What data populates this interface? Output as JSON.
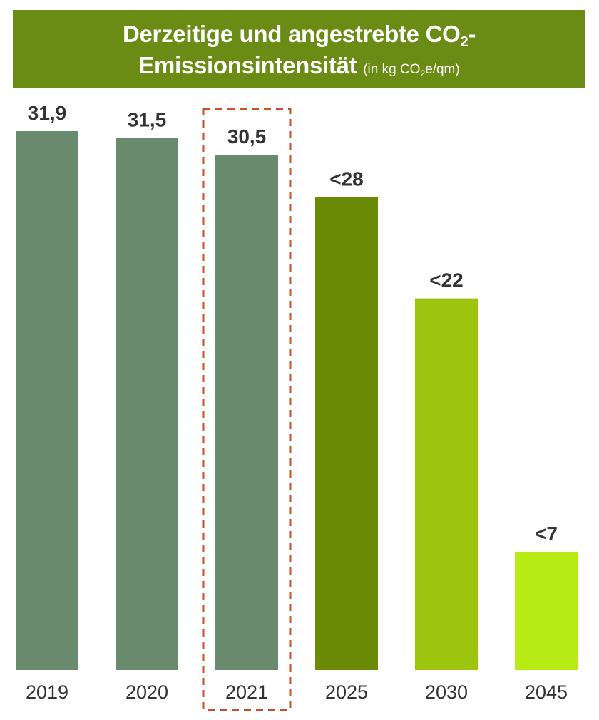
{
  "title": {
    "line1_text": "Derzeitige und angestrebte CO",
    "line1_sub": "2",
    "line1_suffix": "-",
    "line2_text": "Emissionsintensität",
    "unit_text": "(in kg CO",
    "unit_sub": "2",
    "unit_suffix": "e/qm)"
  },
  "colors": {
    "banner": "#6b8c14",
    "historical": "#6a8a6e",
    "target_2025": "#6b8a06",
    "target_2030": "#9dc40e",
    "target_2045": "#b8ea16",
    "highlight_border": "#c5502a",
    "label_text": "#333333"
  },
  "chart_data": {
    "type": "bar",
    "title": "Derzeitige und angestrebte CO2-Emissionsintensität (in kg CO2e/qm)",
    "xlabel": "",
    "ylabel": "",
    "categories": [
      "2019",
      "2020",
      "2021",
      "2025",
      "2030",
      "2045"
    ],
    "values": [
      31.9,
      31.5,
      30.5,
      28,
      22,
      7
    ],
    "value_labels": [
      "31,9",
      "31,5",
      "30,5",
      "<28",
      "<22",
      "<7"
    ],
    "bar_colors": [
      "#6a8a6e",
      "#6a8a6e",
      "#6a8a6e",
      "#6b8a06",
      "#9dc40e",
      "#b8ea16"
    ],
    "highlighted_category": "2021",
    "ylim": [
      0,
      31.9
    ],
    "grid": false,
    "legend": "none"
  }
}
